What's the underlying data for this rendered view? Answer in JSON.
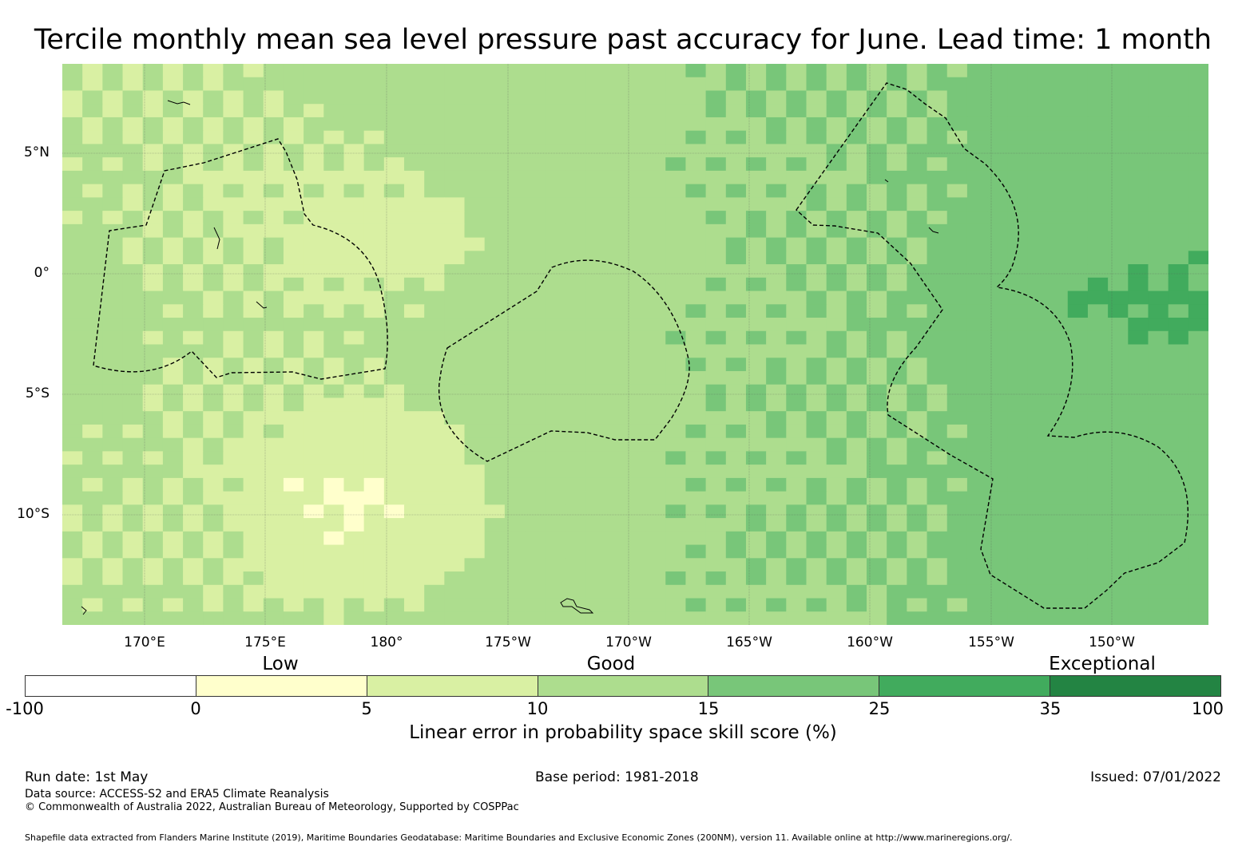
{
  "title": "Tercile monthly mean sea level pressure past accuracy for June. Lead time: 1 month",
  "map": {
    "lat_labels": [
      "5°N",
      "0°",
      "5°S",
      "10°S"
    ],
    "lon_labels": [
      "170°E",
      "175°E",
      "180°",
      "175°W",
      "170°W",
      "165°W",
      "160°W",
      "155°W",
      "150°W"
    ],
    "colors": {
      "below_zero": "#ffffff",
      "c0_5": "#ffffcc",
      "c5_10": "#d9f0a3",
      "c10_15": "#addd8e",
      "c15_25": "#78c679",
      "c25_35": "#41ab5d",
      "c35_100": "#238443"
    }
  },
  "categories": {
    "low": "Low",
    "good": "Good",
    "exceptional": "Exceptional"
  },
  "colorbar": {
    "ticks": [
      "-100",
      "0",
      "5",
      "10",
      "15",
      "25",
      "35",
      "100"
    ],
    "label": "Linear error in probability space skill score (%)"
  },
  "footer": {
    "run_date": "Run date: 1st May",
    "base_period": "Base period: 1981-2018",
    "issued": "Issued: 07/01/2022",
    "data_source": "Data source: ACCESS-S2 and ERA5 Climate Reanalysis",
    "copyright": "© Commonwealth of Australia 2022, Australian Bureau of Meteorology, Supported by COSPPac",
    "shapefile": "Shapefile data extracted from Flanders Marine Institute (2019), Maritime Boundaries Geodatabase: Maritime Boundaries and Exclusive Economic Zones (200NM), version 11. Available online at http://www.marineregions.org/."
  }
}
